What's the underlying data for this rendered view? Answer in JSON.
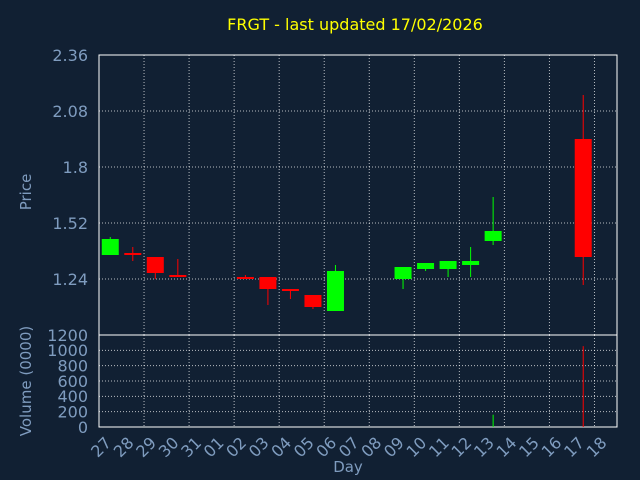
{
  "chart_data": {
    "type": "candlestick",
    "title": "FRGT - last updated 17/02/2026",
    "price_panel": {
      "ylabel": "Price",
      "ylim": [
        0.96,
        2.36
      ],
      "yticks": [
        2.36,
        2.08,
        1.8,
        1.52,
        1.24
      ],
      "grid": true
    },
    "volume_panel": {
      "ylabel": "Volume (0000)",
      "ylim": [
        0,
        1200
      ],
      "yticks": [
        1200,
        1000,
        800,
        600,
        400,
        200,
        0
      ],
      "grid": true
    },
    "xlabel": "Day",
    "x_ticks": [
      "27",
      "28",
      "29",
      "30",
      "31",
      "01",
      "02",
      "03",
      "04",
      "05",
      "06",
      "07",
      "08",
      "09",
      "10",
      "11",
      "12",
      "13",
      "14",
      "15",
      "16",
      "17",
      "18"
    ],
    "candles": [
      {
        "day": "27",
        "open": 1.36,
        "high": 1.45,
        "low": 1.36,
        "close": 1.44,
        "volume": 0
      },
      {
        "day": "28",
        "open": 1.37,
        "high": 1.4,
        "low": 1.33,
        "close": 1.36,
        "volume": 0
      },
      {
        "day": "29",
        "open": 1.35,
        "high": 1.35,
        "low": 1.24,
        "close": 1.27,
        "volume": 0
      },
      {
        "day": "30",
        "open": 1.26,
        "high": 1.34,
        "low": 1.25,
        "close": 1.25,
        "volume": 0
      },
      {
        "day": "02",
        "open": 1.25,
        "high": 1.26,
        "low": 1.24,
        "close": 1.24,
        "volume": 0
      },
      {
        "day": "03",
        "open": 1.25,
        "high": 1.25,
        "low": 1.11,
        "close": 1.19,
        "volume": 0
      },
      {
        "day": "04",
        "open": 1.19,
        "high": 1.19,
        "low": 1.14,
        "close": 1.18,
        "volume": 0
      },
      {
        "day": "05",
        "open": 1.16,
        "high": 1.16,
        "low": 1.09,
        "close": 1.1,
        "volume": 0
      },
      {
        "day": "06",
        "open": 1.08,
        "high": 1.31,
        "low": 1.08,
        "close": 1.28,
        "volume": 0
      },
      {
        "day": "09",
        "open": 1.24,
        "high": 1.3,
        "low": 1.19,
        "close": 1.3,
        "volume": 0
      },
      {
        "day": "10",
        "open": 1.29,
        "high": 1.32,
        "low": 1.28,
        "close": 1.32,
        "volume": 0
      },
      {
        "day": "11",
        "open": 1.29,
        "high": 1.33,
        "low": 1.25,
        "close": 1.33,
        "volume": 0
      },
      {
        "day": "12",
        "open": 1.31,
        "high": 1.4,
        "low": 1.25,
        "close": 1.33,
        "volume": 0
      },
      {
        "day": "13",
        "open": 1.43,
        "high": 1.65,
        "low": 1.41,
        "close": 1.48,
        "volume": 160
      },
      {
        "day": "17",
        "open": 1.94,
        "high": 2.16,
        "low": 1.21,
        "close": 1.35,
        "volume": 1050
      }
    ],
    "colors": {
      "background": "#112033",
      "up": "#00ff00",
      "down": "#ff0000",
      "title": "#ffff00",
      "axis_text": "#7f9cbf",
      "frame": "#ffffff"
    }
  }
}
